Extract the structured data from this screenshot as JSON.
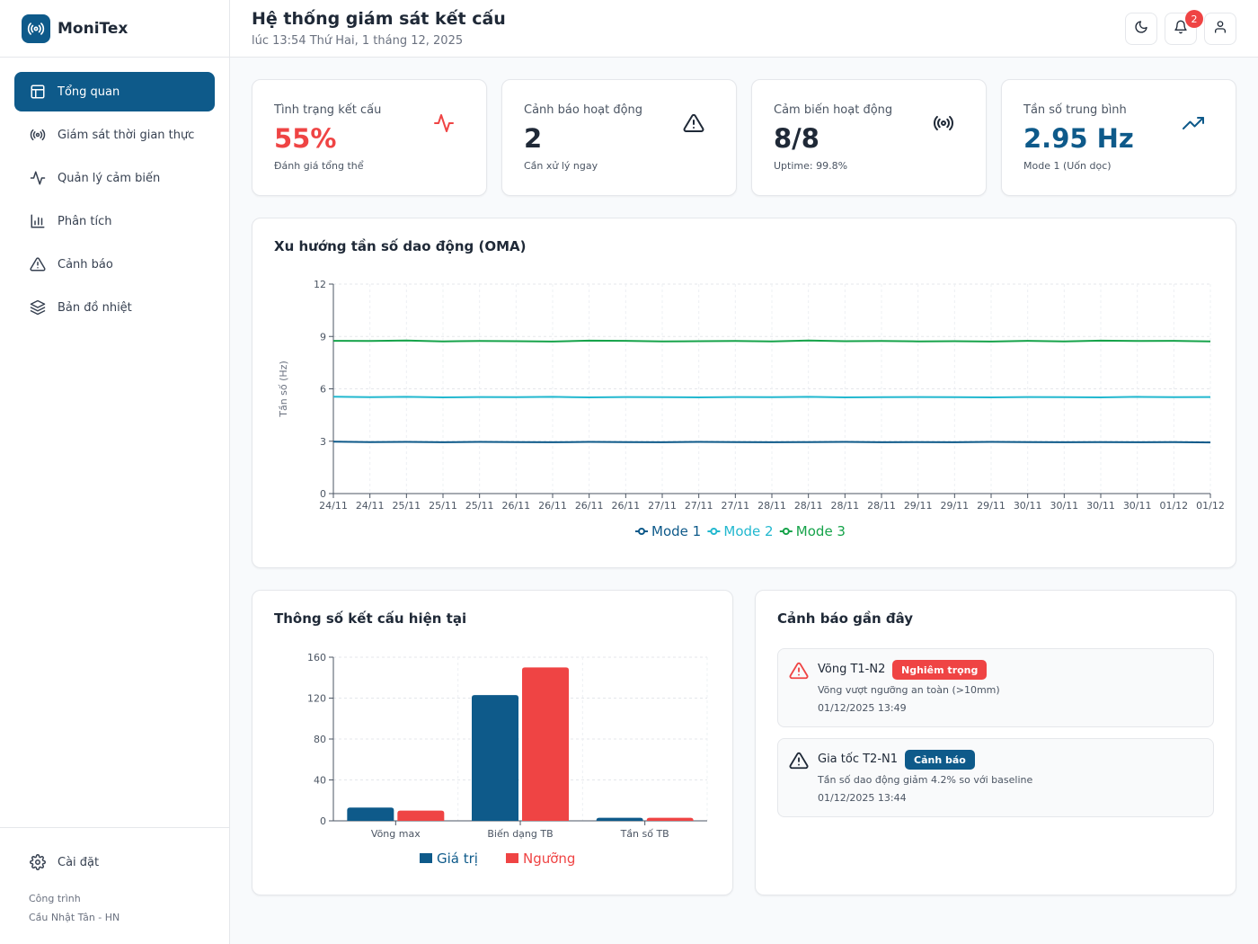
{
  "app": {
    "name": "MoniTex"
  },
  "header": {
    "title": "Hệ thống giám sát kết cấu",
    "subtitle": "lúc 13:54 Thứ Hai, 1 tháng 12, 2025",
    "notification_count": "2"
  },
  "sidebar": {
    "items": [
      {
        "label": "Tổng quan",
        "icon": "layout-icon",
        "active": true
      },
      {
        "label": "Giám sát thời gian thực",
        "icon": "broadcast-icon"
      },
      {
        "label": "Quản lý cảm biến",
        "icon": "activity-icon"
      },
      {
        "label": "Phân tích",
        "icon": "bar-chart-icon"
      },
      {
        "label": "Cảnh báo",
        "icon": "alert-triangle-icon"
      },
      {
        "label": "Bản đồ nhiệt",
        "icon": "layers-icon"
      }
    ],
    "settings_label": "Cài đặt",
    "project_label": "Công trình",
    "project_name": "Cầu Nhật Tân - HN"
  },
  "stats": [
    {
      "label": "Tình trạng kết cấu",
      "value": "55%",
      "sub": "Đánh giá tổng thể",
      "icon": "activity-icon",
      "color": "#ef4444"
    },
    {
      "label": "Cảnh báo hoạt động",
      "value": "2",
      "sub": "Cần xử lý ngay",
      "icon": "alert-triangle-icon",
      "color": "#1f2937"
    },
    {
      "label": "Cảm biến hoạt động",
      "value": "8/8",
      "sub": "Uptime: 99.8%",
      "icon": "broadcast-icon",
      "color": "#1f2937"
    },
    {
      "label": "Tần số trung bình",
      "value": "2.95 Hz",
      "sub": "Mode 1 (Uốn dọc)",
      "icon": "trending-up-icon",
      "color": "#0e5a8a"
    }
  ],
  "trend": {
    "title": "Xu hướng tần số dao động (OMA)",
    "chart_data": {
      "type": "line",
      "ylabel": "Tần số (Hz)",
      "ylim": [
        0,
        12
      ],
      "yticks": [
        "0",
        "3",
        "6",
        "9",
        "12"
      ],
      "x": [
        "24/11",
        "24/11",
        "25/11",
        "25/11",
        "25/11",
        "26/11",
        "26/11",
        "26/11",
        "26/11",
        "27/11",
        "27/11",
        "27/11",
        "28/11",
        "28/11",
        "28/11",
        "28/11",
        "29/11",
        "29/11",
        "29/11",
        "30/11",
        "30/11",
        "30/11",
        "30/11",
        "01/12",
        "01/12"
      ],
      "series": [
        {
          "name": "Mode 1",
          "color": "#0e5a8a",
          "values": [
            2.97,
            2.95,
            2.96,
            2.94,
            2.96,
            2.95,
            2.94,
            2.96,
            2.95,
            2.94,
            2.96,
            2.95,
            2.94,
            2.95,
            2.96,
            2.94,
            2.95,
            2.94,
            2.96,
            2.95,
            2.94,
            2.95,
            2.94,
            2.95,
            2.93
          ]
        },
        {
          "name": "Mode 2",
          "color": "#22b8cf",
          "values": [
            5.55,
            5.52,
            5.54,
            5.51,
            5.53,
            5.52,
            5.54,
            5.51,
            5.53,
            5.52,
            5.51,
            5.53,
            5.52,
            5.54,
            5.51,
            5.52,
            5.53,
            5.52,
            5.51,
            5.53,
            5.52,
            5.51,
            5.54,
            5.52,
            5.53
          ]
        },
        {
          "name": "Mode 3",
          "color": "#16a34a",
          "values": [
            8.75,
            8.74,
            8.77,
            8.72,
            8.74,
            8.73,
            8.71,
            8.76,
            8.75,
            8.72,
            8.73,
            8.74,
            8.72,
            8.77,
            8.73,
            8.74,
            8.72,
            8.73,
            8.71,
            8.75,
            8.72,
            8.76,
            8.74,
            8.75,
            8.72
          ]
        }
      ],
      "grid": true,
      "legend": "bottom-center"
    }
  },
  "params": {
    "title": "Thông số kết cấu hiện tại",
    "chart_data": {
      "type": "bar",
      "categories": [
        "Võng max",
        "Biến dạng TB",
        "Tần số TB"
      ],
      "ylim": [
        0,
        160
      ],
      "yticks": [
        "0",
        "40",
        "80",
        "120",
        "160"
      ],
      "series": [
        {
          "name": "Giá trị",
          "color": "#0e5a8a",
          "values": [
            13,
            123,
            3
          ]
        },
        {
          "name": "Ngưỡng",
          "color": "#ef4444",
          "values": [
            10,
            150,
            3
          ]
        }
      ],
      "grid": true,
      "legend": "bottom-center"
    }
  },
  "alerts": {
    "title": "Cảnh báo gần đây",
    "items": [
      {
        "title": "Võng T1-N2",
        "tag": "Nghiêm trọng",
        "tag_color": "#ef4444",
        "icon_color": "#ef4444",
        "desc": "Võng vượt ngưỡng an toàn (>10mm)",
        "time": "01/12/2025 13:49"
      },
      {
        "title": "Gia tốc T2-N1",
        "tag": "Cảnh báo",
        "tag_color": "#0e5a8a",
        "icon_color": "#1f2937",
        "desc": "Tần số dao động giảm 4.2% so với baseline",
        "time": "01/12/2025 13:44"
      }
    ]
  }
}
